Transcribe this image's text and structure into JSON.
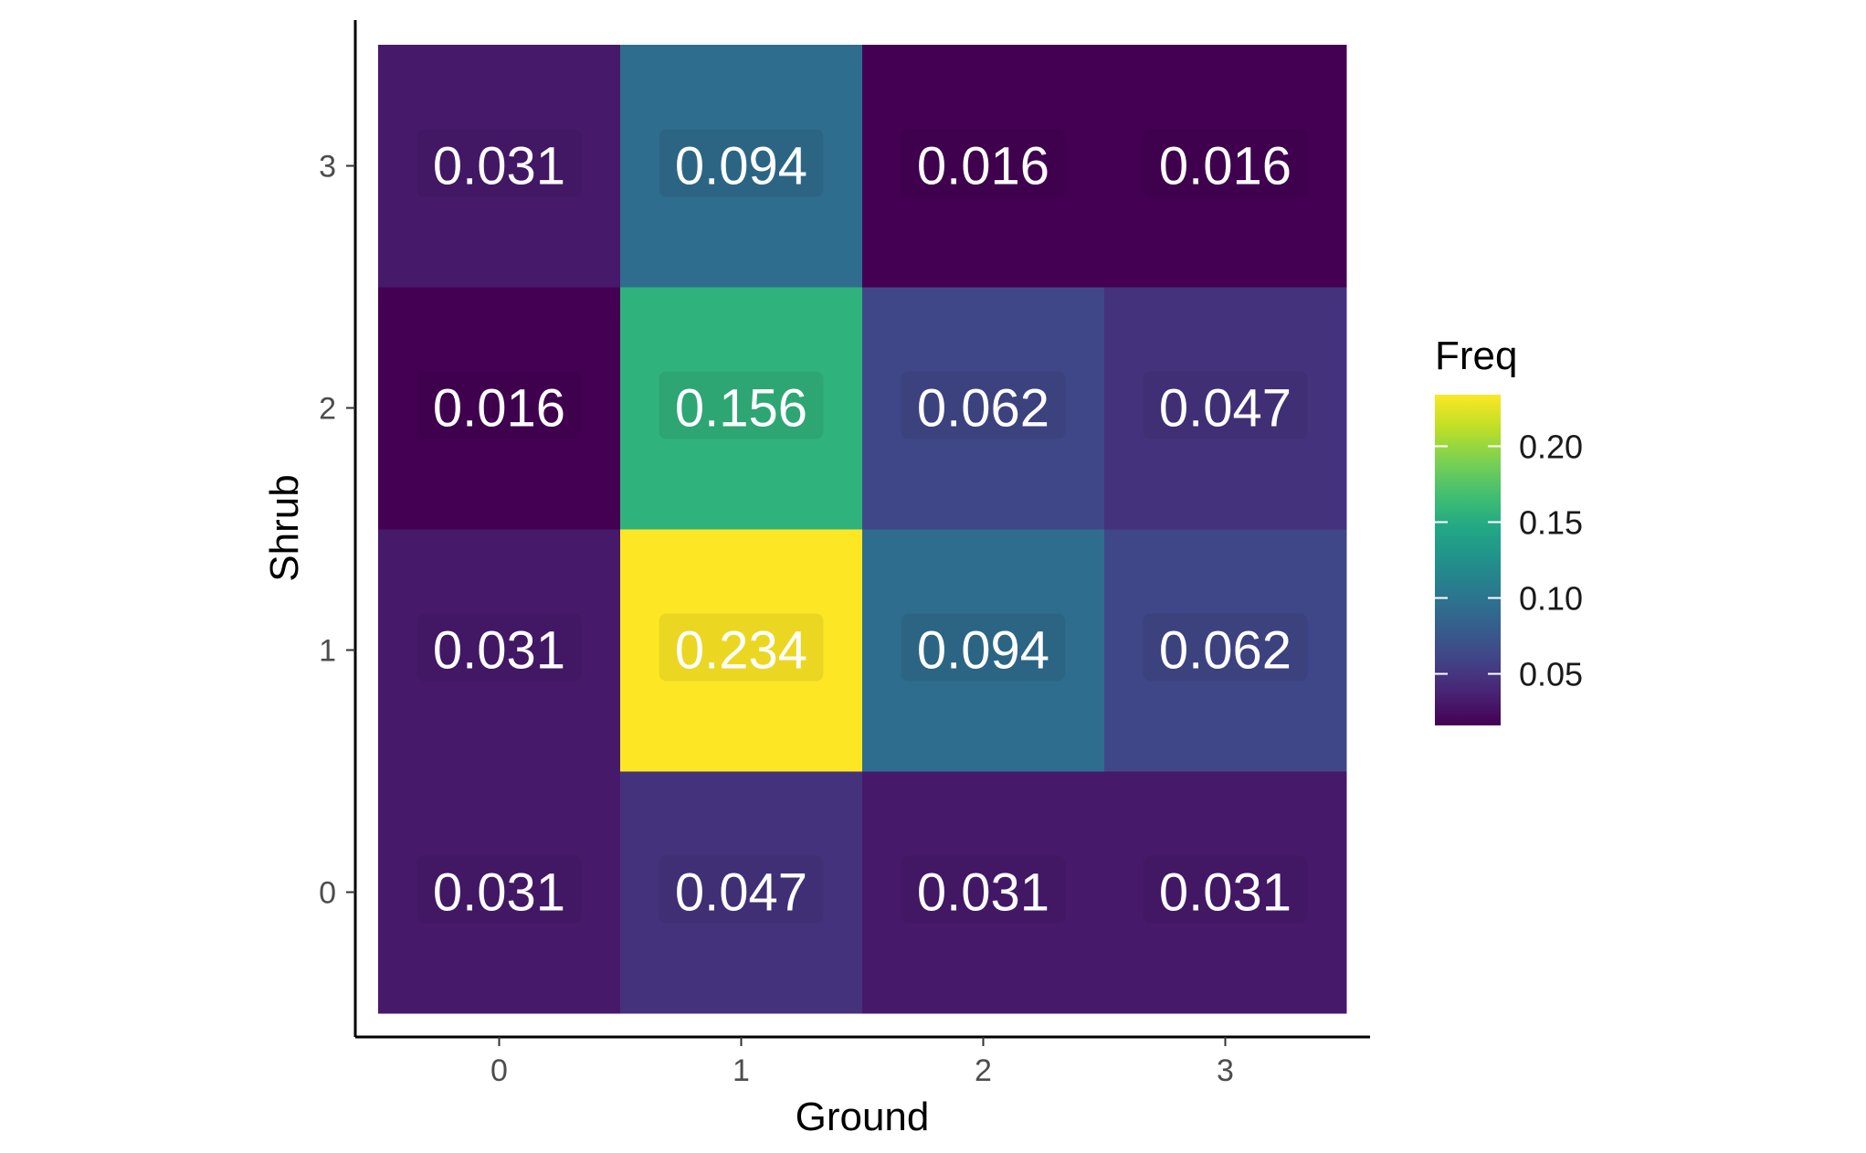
{
  "chart_data": {
    "type": "heatmap",
    "x": [
      "0",
      "1",
      "2",
      "3"
    ],
    "y": [
      "0",
      "1",
      "2",
      "3"
    ],
    "xlabel": "Ground",
    "ylabel": "Shrub",
    "values": [
      [
        0.031,
        0.047,
        0.031,
        0.031
      ],
      [
        0.031,
        0.234,
        0.094,
        0.062
      ],
      [
        0.016,
        0.156,
        0.062,
        0.047
      ],
      [
        0.031,
        0.094,
        0.016,
        0.016
      ]
    ],
    "labels": [
      [
        "0.031",
        "0.047",
        "0.031",
        "0.031"
      ],
      [
        "0.031",
        "0.234",
        "0.094",
        "0.062"
      ],
      [
        "0.016",
        "0.156",
        "0.062",
        "0.047"
      ],
      [
        "0.031",
        "0.094",
        "0.016",
        "0.016"
      ]
    ],
    "colorscale": "viridis",
    "color_range": [
      0.016,
      0.234
    ],
    "legend": {
      "title": "Freq",
      "ticks": [
        0.05,
        0.1,
        0.15,
        0.2
      ],
      "tick_labels": [
        "0.05",
        "0.10",
        "0.15",
        "0.20"
      ],
      "position": "right"
    }
  }
}
